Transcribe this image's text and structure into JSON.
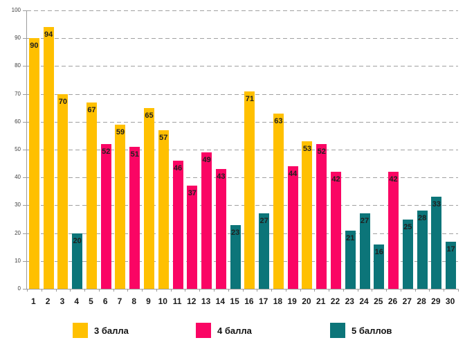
{
  "chart_data": {
    "type": "bar",
    "title": "",
    "xlabel": "",
    "ylabel": "",
    "categories": [
      "1",
      "2",
      "3",
      "4",
      "5",
      "6",
      "7",
      "8",
      "9",
      "10",
      "11",
      "12",
      "13",
      "14",
      "15",
      "16",
      "17",
      "18",
      "19",
      "20",
      "21",
      "22",
      "23",
      "24",
      "25",
      "26",
      "27",
      "28",
      "29",
      "30"
    ],
    "values": [
      90,
      94,
      70,
      20,
      67,
      52,
      59,
      51,
      65,
      57,
      46,
      37,
      49,
      43,
      23,
      71,
      27,
      63,
      44,
      53,
      52,
      42,
      21,
      27,
      16,
      42,
      25,
      28,
      33,
      17
    ],
    "series_index": [
      0,
      0,
      0,
      2,
      0,
      1,
      0,
      1,
      0,
      0,
      1,
      1,
      1,
      1,
      2,
      0,
      2,
      0,
      1,
      0,
      1,
      1,
      2,
      2,
      2,
      1,
      2,
      2,
      2,
      2
    ],
    "series": [
      {
        "name": "3 балла",
        "color": "#FFC000"
      },
      {
        "name": "4 балла",
        "color": "#FA0564"
      },
      {
        "name": "5 баллов",
        "color": "#0C7579"
      }
    ],
    "ylim": [
      0,
      100
    ],
    "y_ticks": [
      0,
      10,
      20,
      30,
      40,
      50,
      60,
      70,
      80,
      90,
      100
    ],
    "grid": "horizontal-dashed",
    "gridline_color": "#a0a0a0",
    "legend_position": "bottom",
    "value_labels": "inside-top"
  }
}
